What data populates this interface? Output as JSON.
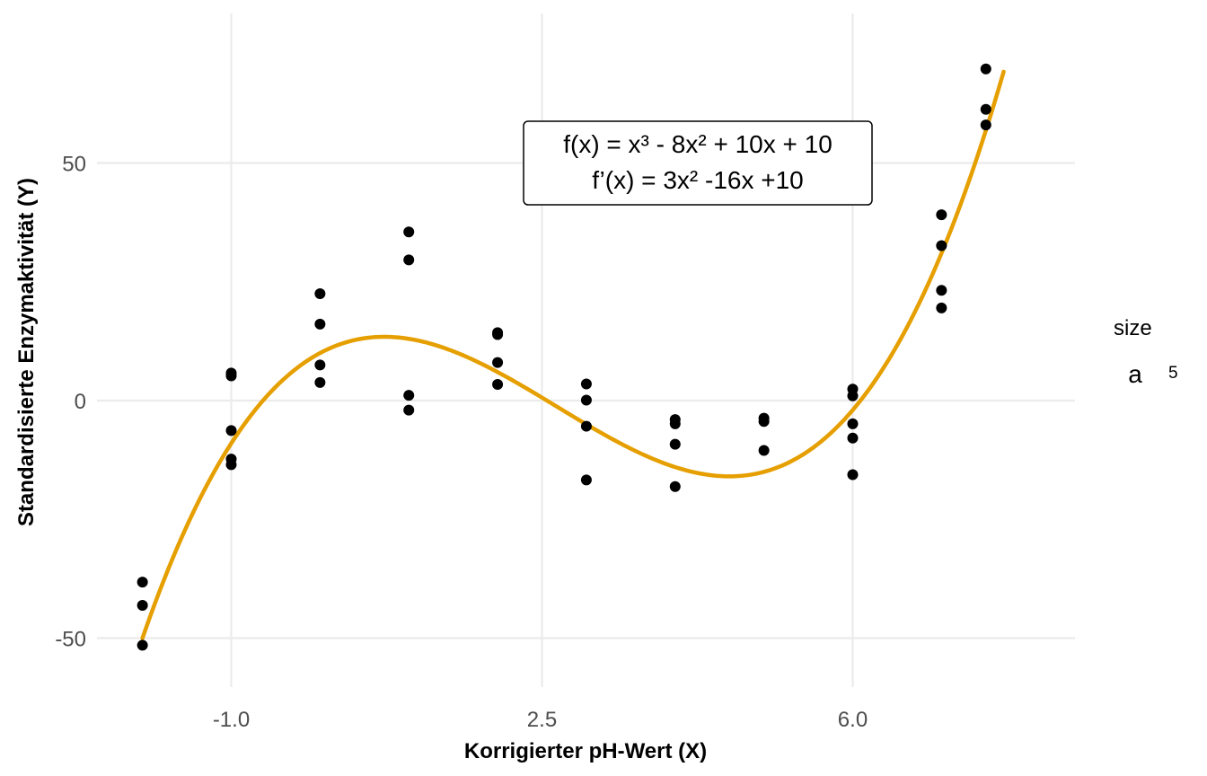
{
  "chart_data": {
    "type": "scatter",
    "xlabel": "Korrigierter pH-Wert (X)",
    "ylabel": "Standardisierte Enzymaktivität (Y)",
    "xlim": [
      -2.0,
      8.5
    ],
    "ylim": [
      -60,
      82
    ],
    "x_ticks": [
      -1.0,
      2.5,
      6.0
    ],
    "x_tick_labels": [
      "-1.0",
      "2.5",
      "6.0"
    ],
    "y_ticks": [
      -50,
      0,
      50
    ],
    "y_tick_labels": [
      "-50",
      "0",
      "50"
    ],
    "grid": true,
    "annotation": {
      "line1": "f(x) = x³ - 8x² + 10x + 10",
      "line2": "f’(x) = 3x² -16x +10"
    },
    "fit_curve": {
      "coefficients": [
        1,
        -8,
        10,
        10
      ],
      "x_range": [
        -2.0,
        7.7
      ],
      "color": "#E69F00"
    },
    "legend": {
      "title": "size",
      "key": "a",
      "label": "5",
      "position": "right"
    },
    "series": [
      {
        "color": "#000000",
        "points": [
          [
            -2.0,
            -38.2
          ],
          [
            -2.0,
            -43.1
          ],
          [
            -2.0,
            -51.5
          ],
          [
            -1.0,
            5.8
          ],
          [
            -1.0,
            5.2
          ],
          [
            -1.0,
            -6.3
          ],
          [
            -1.0,
            -12.3
          ],
          [
            -1.0,
            -13.5
          ],
          [
            0.0,
            22.5
          ],
          [
            0.0,
            16.1
          ],
          [
            0.0,
            7.5
          ],
          [
            0.0,
            3.8
          ],
          [
            1.0,
            35.5
          ],
          [
            1.0,
            29.6
          ],
          [
            1.0,
            1.1
          ],
          [
            1.0,
            -2.0
          ],
          [
            2.0,
            14.3
          ],
          [
            2.0,
            13.9
          ],
          [
            2.0,
            8.0
          ],
          [
            2.0,
            3.4
          ],
          [
            3.0,
            3.5
          ],
          [
            3.0,
            0.1
          ],
          [
            3.0,
            -5.4
          ],
          [
            3.0,
            -16.7
          ],
          [
            4.0,
            -4.0
          ],
          [
            4.0,
            -4.9
          ],
          [
            4.0,
            -9.2
          ],
          [
            4.0,
            -18.1
          ],
          [
            5.0,
            -3.7
          ],
          [
            5.0,
            -4.4
          ],
          [
            5.0,
            -10.5
          ],
          [
            6.0,
            2.4
          ],
          [
            6.0,
            1.0
          ],
          [
            6.0,
            -4.9
          ],
          [
            6.0,
            -7.9
          ],
          [
            6.0,
            -15.6
          ],
          [
            7.0,
            39.1
          ],
          [
            7.0,
            32.6
          ],
          [
            7.0,
            23.2
          ],
          [
            7.0,
            19.5
          ],
          [
            7.5,
            69.8
          ],
          [
            7.5,
            61.3
          ],
          [
            7.5,
            58.0
          ]
        ]
      }
    ]
  }
}
